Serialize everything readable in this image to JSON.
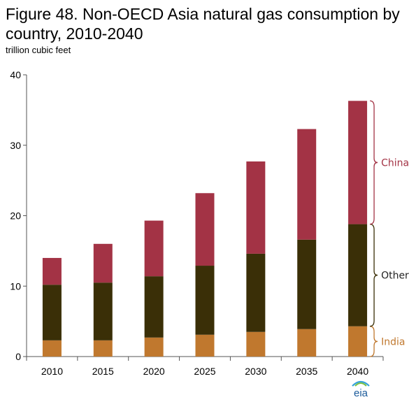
{
  "chart_data": {
    "type": "bar",
    "stacked": true,
    "title": "Figure 48. Non-OECD Asia natural gas consumption by country, 2010-2040",
    "ylabel": "trillion  cubic feet",
    "xlabel": "",
    "ylim": [
      0,
      40
    ],
    "yticks": [
      0,
      10,
      20,
      30,
      40
    ],
    "categories": [
      "2010",
      "2015",
      "2020",
      "2025",
      "2030",
      "2035",
      "2040"
    ],
    "series": [
      {
        "name": "India",
        "color": "#c0782e",
        "values": [
          2.3,
          2.3,
          2.7,
          3.1,
          3.5,
          3.9,
          4.3
        ]
      },
      {
        "name": "Other",
        "color": "#3a2f07",
        "values": [
          7.9,
          8.2,
          8.7,
          9.8,
          11.1,
          12.7,
          14.5
        ]
      },
      {
        "name": "China",
        "color": "#a33345",
        "values": [
          3.8,
          5.5,
          7.9,
          10.3,
          13.1,
          15.7,
          17.5
        ]
      }
    ],
    "grid": false,
    "legend": "brace labels at right of last bar"
  },
  "logo_text": "eia"
}
